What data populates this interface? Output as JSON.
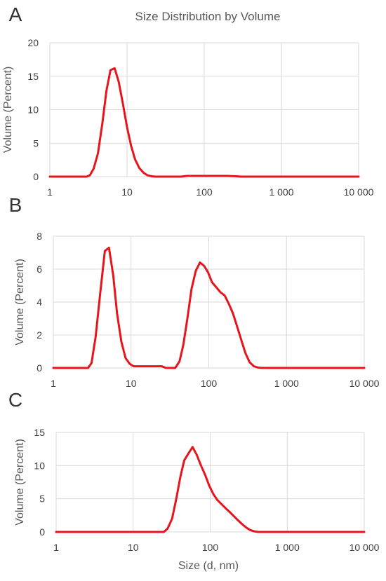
{
  "figure": {
    "title": "Size Distribution by Volume",
    "xlabel": "Size (d, nm)"
  },
  "colors": {
    "series": "#e8141c",
    "grid": "#d9d9d9",
    "text": "#595959"
  },
  "chart_data": [
    {
      "panel": "A",
      "type": "line",
      "xscale": "log",
      "xlim": [
        1,
        10000
      ],
      "ylim": [
        0,
        20
      ],
      "xticks": [
        "1",
        "10",
        "100",
        "1 000",
        "10 000"
      ],
      "yticks": [
        "0",
        "5",
        "10",
        "15",
        "20"
      ],
      "ylabel": "Volume (Percent)",
      "grid": true,
      "series": [
        {
          "x": [
            1,
            2,
            3,
            3.3,
            3.7,
            4.2,
            4.8,
            5.4,
            6.1,
            6.9,
            7.8,
            8.8,
            10,
            11.3,
            12.7,
            14.4,
            16.3,
            18.4,
            20.8,
            23.5,
            27,
            50,
            60,
            100,
            200,
            260,
            300,
            1000,
            10000
          ],
          "y": [
            0,
            0,
            0,
            0.2,
            1.2,
            3.5,
            8.0,
            12.8,
            15.9,
            16.2,
            14.2,
            11.0,
            7.4,
            4.6,
            2.6,
            1.3,
            0.6,
            0.2,
            0.05,
            0,
            0,
            0,
            0.1,
            0.1,
            0.1,
            0.05,
            0,
            0,
            0
          ]
        }
      ]
    },
    {
      "panel": "B",
      "type": "line",
      "xscale": "log",
      "xlim": [
        1,
        10000
      ],
      "ylim": [
        0,
        8
      ],
      "xticks": [
        "1",
        "10",
        "100",
        "1 000",
        "10 000"
      ],
      "yticks": [
        "0",
        "2",
        "4",
        "6",
        "8"
      ],
      "ylabel": "Volume (Percent)",
      "grid": true,
      "series": [
        {
          "x": [
            1,
            2,
            2.8,
            3.1,
            3.5,
            4.0,
            4.6,
            5.2,
            5.9,
            6.6,
            7.5,
            8.5,
            9.6,
            10.8,
            12.2,
            14,
            25,
            28,
            37,
            42,
            47,
            53,
            60,
            68,
            77,
            87,
            98,
            110,
            125,
            141,
            160,
            181,
            205,
            232,
            262,
            296,
            335,
            380,
            430,
            486,
            550,
            622,
            703,
            1000,
            10000
          ],
          "y": [
            0,
            0,
            0,
            0.3,
            1.9,
            4.5,
            7.1,
            7.3,
            5.6,
            3.3,
            1.6,
            0.6,
            0.25,
            0.1,
            0.1,
            0.1,
            0.1,
            0,
            0,
            0.4,
            1.4,
            3.0,
            4.8,
            5.9,
            6.4,
            6.2,
            5.8,
            5.2,
            4.9,
            4.6,
            4.4,
            3.9,
            3.3,
            2.5,
            1.7,
            0.9,
            0.35,
            0.1,
            0.02,
            0,
            0,
            0,
            0,
            0,
            0
          ]
        }
      ]
    },
    {
      "panel": "C",
      "type": "line",
      "xscale": "log",
      "xlim": [
        1,
        10000
      ],
      "ylim": [
        0,
        15
      ],
      "xticks": [
        "1",
        "10",
        "100",
        "1 000",
        "10 000"
      ],
      "yticks": [
        "0",
        "5",
        "10",
        "15"
      ],
      "ylabel": "Volume (Percent)",
      "xlabel": "Size (d, nm)",
      "grid": true,
      "series": [
        {
          "x": [
            1,
            10,
            20,
            25,
            28,
            32,
            36,
            41,
            46,
            52,
            59,
            67,
            76,
            86,
            97,
            110,
            124,
            140,
            158,
            179,
            202,
            228,
            258,
            291,
            329,
            371,
            419,
            473,
            535,
            604,
            682,
            1000,
            10000
          ],
          "y": [
            0,
            0,
            0,
            0,
            0.5,
            2.0,
            4.8,
            8.3,
            10.8,
            11.8,
            12.8,
            11.6,
            10.0,
            8.6,
            7.0,
            5.7,
            4.8,
            4.2,
            3.6,
            3.0,
            2.4,
            1.8,
            1.2,
            0.7,
            0.3,
            0.1,
            0,
            0,
            0,
            0,
            0,
            0,
            0
          ]
        }
      ]
    }
  ]
}
